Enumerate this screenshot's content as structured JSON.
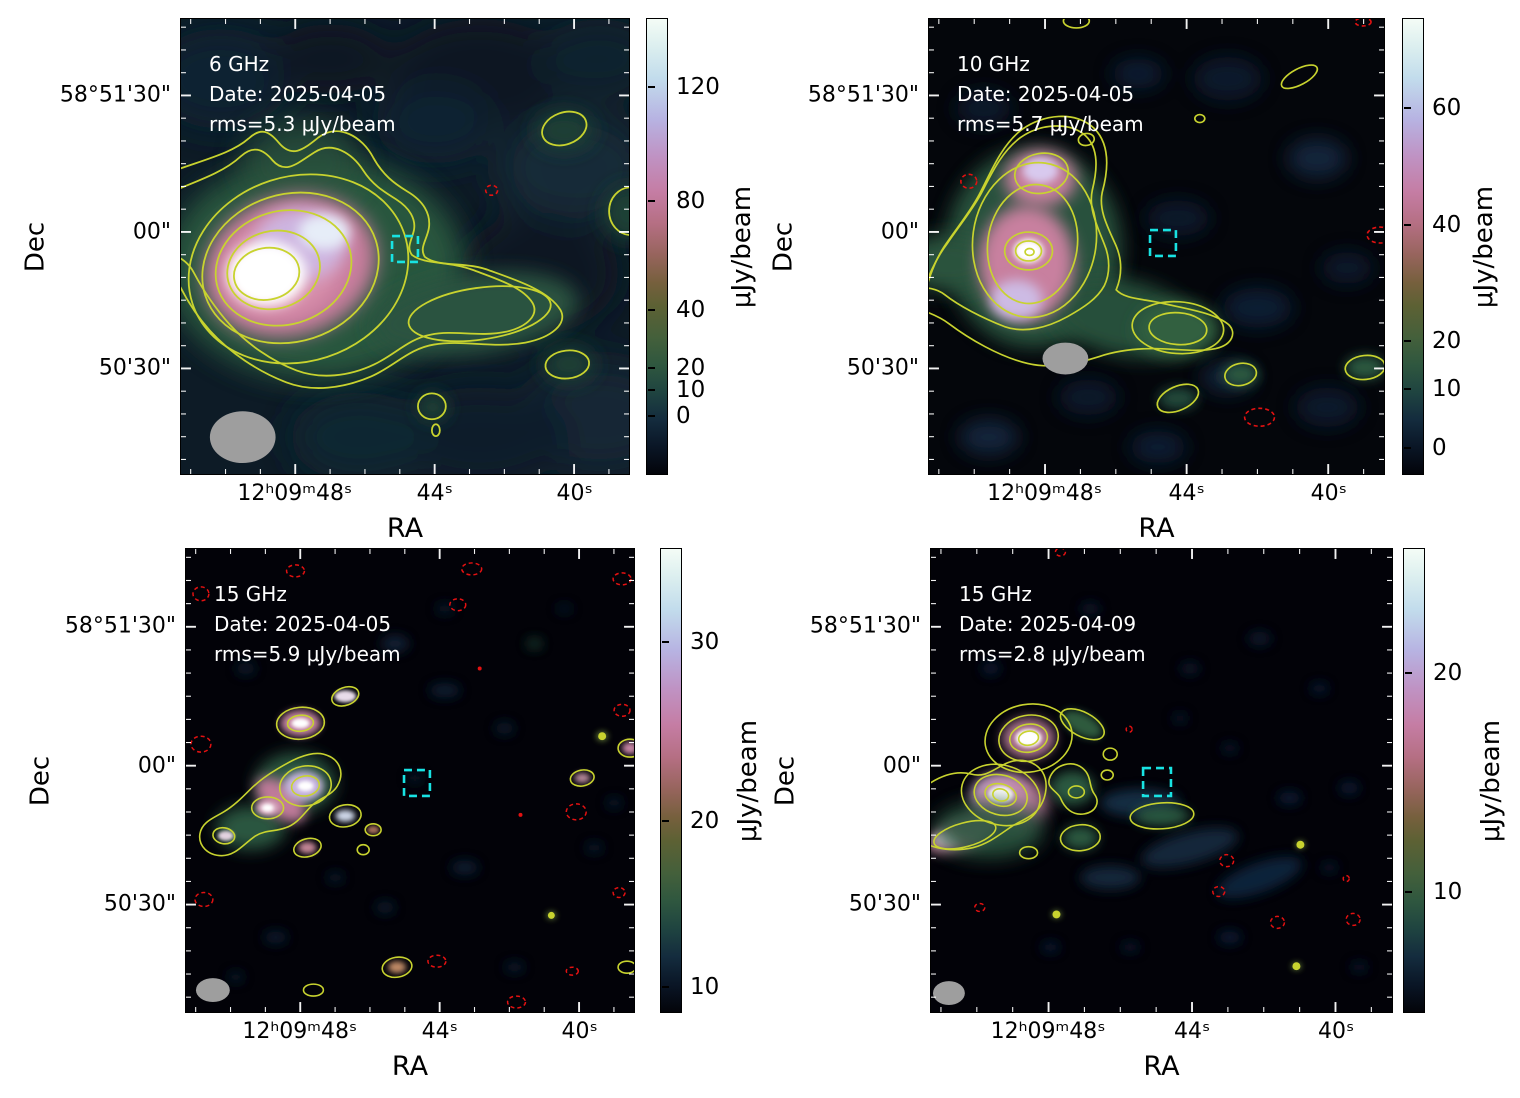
{
  "panels": [
    {
      "annotation": {
        "line1": "6 GHz",
        "line2": "Date: 2025-04-05",
        "line3": "rms=5.3 μJy/beam"
      },
      "xlabel": "RA",
      "ylabel": "Dec",
      "x_ticks": [
        {
          "label": "12ʰ09ᵐ48ˢ"
        },
        {
          "label": "44ˢ"
        },
        {
          "label": "40ˢ"
        }
      ],
      "y_ticks": [
        {
          "label": "58°51'30\""
        },
        {
          "label": "00\""
        },
        {
          "label": "50'30\""
        }
      ],
      "colorbar": {
        "label": "μJy/beam",
        "ticks": [
          {
            "label": "120"
          },
          {
            "label": "80"
          },
          {
            "label": "40"
          },
          {
            "label": "20"
          },
          {
            "label": "10"
          },
          {
            "label": "0"
          }
        ]
      }
    },
    {
      "annotation": {
        "line1": "10 GHz",
        "line2": "Date: 2025-04-05",
        "line3": "rms=5.7 μJy/beam"
      },
      "xlabel": "RA",
      "ylabel": "Dec",
      "x_ticks": [
        {
          "label": "12ʰ09ᵐ48ˢ"
        },
        {
          "label": "44ˢ"
        },
        {
          "label": "40ˢ"
        }
      ],
      "y_ticks": [
        {
          "label": "58°51'30\""
        },
        {
          "label": "00\""
        },
        {
          "label": "50'30\""
        }
      ],
      "colorbar": {
        "label": "μJy/beam",
        "ticks": [
          {
            "label": "60"
          },
          {
            "label": "40"
          },
          {
            "label": "20"
          },
          {
            "label": "10"
          },
          {
            "label": "0"
          }
        ]
      }
    },
    {
      "annotation": {
        "line1": "15 GHz",
        "line2": "Date: 2025-04-05",
        "line3": "rms=5.9 μJy/beam"
      },
      "xlabel": "RA",
      "ylabel": "Dec",
      "x_ticks": [
        {
          "label": "12ʰ09ᵐ48ˢ"
        },
        {
          "label": "44ˢ"
        },
        {
          "label": "40ˢ"
        }
      ],
      "y_ticks": [
        {
          "label": "58°51'30\""
        },
        {
          "label": "00\""
        },
        {
          "label": "50'30\""
        }
      ],
      "colorbar": {
        "label": "μJy/beam",
        "ticks": [
          {
            "label": "30"
          },
          {
            "label": "20"
          },
          {
            "label": "10"
          }
        ]
      }
    },
    {
      "annotation": {
        "line1": "15 GHz",
        "line2": "Date: 2025-04-09",
        "line3": "rms=2.8 μJy/beam"
      },
      "xlabel": "RA",
      "ylabel": "Dec",
      "x_ticks": [
        {
          "label": "12ʰ09ᵐ48ˢ"
        },
        {
          "label": "44ˢ"
        },
        {
          "label": "40ˢ"
        }
      ],
      "y_ticks": [
        {
          "label": "58°51'30\""
        },
        {
          "label": "00\""
        },
        {
          "label": "50'30\""
        }
      ],
      "colorbar": {
        "label": "μJy/beam",
        "ticks": [
          {
            "label": "20"
          },
          {
            "label": "10"
          }
        ]
      }
    }
  ],
  "colors": {
    "positive_contour": "#c8d32f",
    "negative_contour": "#e31111",
    "target_box": "#18e3e3",
    "beam": "#9e9e9e"
  },
  "chart_data": [
    {
      "type": "heatmap",
      "title": "6 GHz radio continuum map",
      "frequency": "6 GHz",
      "date": "2025-04-05",
      "rms_uJy_per_beam": 5.3,
      "colorbar_label": "μJy/beam",
      "colorbar_ticks": [
        120,
        80,
        40,
        20,
        10,
        0
      ],
      "x": {
        "label": "RA",
        "ticks": [
          "12h09m48s",
          "44s",
          "40s"
        ]
      },
      "y": {
        "label": "Dec",
        "ticks": [
          "58°51'30\"",
          "00\"",
          "50'30\""
        ]
      },
      "overlays": [
        "yellow positive contours",
        "red dashed negative contours",
        "cyan dashed target box near 12h09m44s 58°51'00\"",
        "gray beam ellipse bottom-left"
      ],
      "description": "Bright extended source east of center (white core, pink halo, green envelope) with low-level tail extending west; isolated faint contour islands NW, E and SE."
    },
    {
      "type": "heatmap",
      "title": "10 GHz radio continuum map",
      "frequency": "10 GHz",
      "date": "2025-04-05",
      "rms_uJy_per_beam": 5.7,
      "colorbar_label": "μJy/beam",
      "colorbar_ticks": [
        60,
        40,
        20,
        10,
        0
      ],
      "x": {
        "label": "RA",
        "ticks": [
          "12h09m48s",
          "44s",
          "40s"
        ]
      },
      "y": {
        "label": "Dec",
        "ticks": [
          "58°51'30\"",
          "00\"",
          "50'30\""
        ]
      },
      "overlays": [
        "yellow positive contours",
        "red dashed negative contours",
        "cyan dashed target box",
        "gray beam ellipse"
      ],
      "description": "Compact bright source NE of center with pink/violet sub-components and green envelope; short spur to a green blob SE; scattered faint contour islands."
    },
    {
      "type": "heatmap",
      "title": "15 GHz radio continuum map (epoch 1)",
      "frequency": "15 GHz",
      "date": "2025-04-05",
      "rms_uJy_per_beam": 5.9,
      "colorbar_label": "μJy/beam",
      "colorbar_ticks": [
        30,
        20,
        10
      ],
      "x": {
        "label": "RA",
        "ticks": [
          "12h09m48s",
          "44s",
          "40s"
        ]
      },
      "y": {
        "label": "Dec",
        "ticks": [
          "58°51'30\"",
          "00\"",
          "50'30\""
        ]
      },
      "overlays": [
        "yellow positive contours",
        "red dashed negative contours",
        "cyan dashed target box",
        "gray beam ellipse"
      ],
      "description": "Mostly empty field; chain of compact knots with white cores NE of center; many faint noise peaks and small red dashed negative contours."
    },
    {
      "type": "heatmap",
      "title": "15 GHz radio continuum map (epoch 2)",
      "frequency": "15 GHz",
      "date": "2025-04-09",
      "rms_uJy_per_beam": 2.8,
      "colorbar_label": "μJy/beam",
      "colorbar_ticks": [
        20,
        10
      ],
      "x": {
        "label": "RA",
        "ticks": [
          "12h09m48s",
          "44s",
          "40s"
        ]
      },
      "y": {
        "label": "Dec",
        "ticks": [
          "58°51'30\"",
          "00\"",
          "50'30\""
        ]
      },
      "overlays": [
        "yellow positive contours",
        "red dashed negative contours",
        "cyan dashed target box",
        "gray beam ellipse"
      ],
      "description": "Two compact knots with concentric contours and white cores NE of center, pink extended tail to the SW edge, several green contour blobs; sparse red dashed negatives."
    }
  ]
}
